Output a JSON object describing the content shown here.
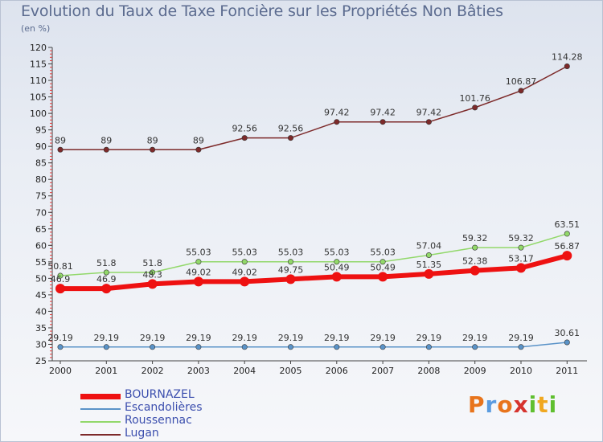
{
  "title": "Evolution du Taux de Taxe Foncière sur les Propriétés Non Bâties",
  "unit_label": "(en %)",
  "logo": {
    "letters": [
      "P",
      "r",
      "o",
      "x",
      "i",
      "t",
      "i"
    ],
    "colors": [
      "#e8741c",
      "#5a9be0",
      "#e8741c",
      "#d6332e",
      "#5fbf2f",
      "#f0a820",
      "#5fbf2f"
    ]
  },
  "chart_data": {
    "type": "line",
    "title": "Evolution du Taux de Taxe Foncière sur les Propriétés Non Bâties",
    "ylabel": "(en %)",
    "xlabel": "",
    "categories": [
      "2000",
      "2001",
      "2002",
      "2003",
      "2004",
      "2005",
      "2006",
      "2007",
      "2008",
      "2009",
      "2010",
      "2011"
    ],
    "ylim": [
      25,
      120
    ],
    "yticks": [
      25,
      30,
      35,
      40,
      45,
      50,
      55,
      60,
      65,
      70,
      75,
      80,
      85,
      90,
      95,
      100,
      105,
      110,
      115,
      120
    ],
    "grid": false,
    "legend": "bottom-left",
    "series": [
      {
        "name": "BOURNAZEL",
        "color": "#ee1111",
        "width": 6,
        "values": [
          46.9,
          46.9,
          48.3,
          49.02,
          49.02,
          49.75,
          50.49,
          50.49,
          51.35,
          52.38,
          53.17,
          56.87
        ],
        "labels": [
          "46.9",
          "46.9",
          "48.3",
          "49.02",
          "49.02",
          "49.75",
          "50.49",
          "50.49",
          "51.35",
          "52.38",
          "53.17",
          "56.87"
        ]
      },
      {
        "name": "Escandolières",
        "color": "#5a93c8",
        "width": 1.5,
        "values": [
          29.19,
          29.19,
          29.19,
          29.19,
          29.19,
          29.19,
          29.19,
          29.19,
          29.19,
          29.19,
          29.19,
          30.61
        ],
        "labels": [
          "29.19",
          "29.19",
          "29.19",
          "29.19",
          "29.19",
          "29.19",
          "29.19",
          "29.19",
          "29.19",
          "29.19",
          "29.19",
          "30.61"
        ]
      },
      {
        "name": "Roussennac",
        "color": "#92d86a",
        "width": 1.5,
        "values": [
          50.81,
          51.8,
          51.8,
          55.03,
          55.03,
          55.03,
          55.03,
          55.03,
          57.04,
          59.32,
          59.32,
          63.51
        ],
        "labels": [
          "50.81",
          "51.8",
          "51.8",
          "55.03",
          "55.03",
          "55.03",
          "55.03",
          "55.03",
          "57.04",
          "59.32",
          "59.32",
          "63.51"
        ]
      },
      {
        "name": "Lugan",
        "color": "#7d2a2a",
        "width": 1.5,
        "values": [
          89,
          89,
          89,
          89,
          92.56,
          92.56,
          97.42,
          97.42,
          97.42,
          101.76,
          106.87,
          114.28
        ],
        "labels": [
          "89",
          "89",
          "89",
          "89",
          "92.56",
          "92.56",
          "97.42",
          "97.42",
          "97.42",
          "101.76",
          "106.87",
          "114.28"
        ]
      }
    ]
  }
}
